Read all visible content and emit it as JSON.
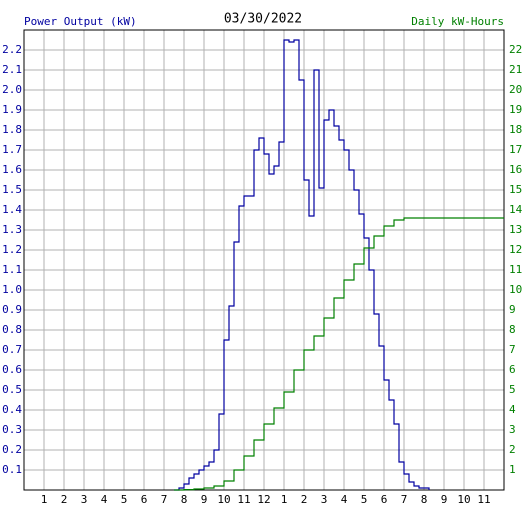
{
  "chart_data": {
    "type": "step-line",
    "title": "03/30/2022",
    "xlim": [
      0,
      24
    ],
    "xticks": [
      1,
      2,
      3,
      4,
      5,
      6,
      7,
      8,
      9,
      10,
      11,
      12,
      {
        "value": 13,
        "label": "1"
      },
      {
        "value": 14,
        "label": "2"
      },
      {
        "value": 15,
        "label": "3"
      },
      {
        "value": 16,
        "label": "4"
      },
      {
        "value": 17,
        "label": "5"
      },
      {
        "value": 18,
        "label": "6"
      },
      {
        "value": 19,
        "label": "7"
      },
      {
        "value": 20,
        "label": "8"
      },
      {
        "value": 21,
        "label": "9"
      },
      {
        "value": 22,
        "label": "10"
      },
      {
        "value": 23,
        "label": "11"
      }
    ],
    "ylim": [
      0,
      2.3
    ],
    "yticks": [
      0.1,
      0.2,
      0.3,
      0.4,
      0.5,
      0.6,
      0.7,
      0.8,
      0.9,
      {
        "value": 1,
        "label": "1.0"
      },
      1.1,
      1.2,
      1.3,
      1.4,
      1.5,
      1.6,
      1.7,
      1.8,
      1.9,
      {
        "value": 2,
        "label": "2.0"
      },
      2.1,
      2.2
    ],
    "y2lim": [
      0,
      23
    ],
    "y2ticks": [
      1,
      2,
      3,
      4,
      5,
      6,
      7,
      8,
      9,
      10,
      11,
      12,
      13,
      14,
      15,
      16,
      17,
      18,
      19,
      20,
      21,
      22
    ],
    "grid": true,
    "series": [
      {
        "name": "Power Output (kW)",
        "color": "#0000a0",
        "axis": "y",
        "x": [
          7.5,
          7.75,
          8,
          8.25,
          8.5,
          8.75,
          9,
          9.25,
          9.5,
          9.75,
          10,
          10.25,
          10.5,
          10.75,
          11,
          11.25,
          11.5,
          11.75,
          12,
          12.25,
          12.5,
          12.75,
          13,
          13.25,
          13.5,
          13.75,
          14,
          14.25,
          14.5,
          14.75,
          15,
          15.25,
          15.5,
          15.75,
          16,
          16.25,
          16.5,
          16.75,
          17,
          17.25,
          17.5,
          17.75,
          18,
          18.25,
          18.5,
          18.75,
          19,
          19.25,
          19.5,
          19.75,
          20,
          20.25
        ],
        "values": [
          0,
          0.01,
          0.03,
          0.06,
          0.08,
          0.1,
          0.12,
          0.14,
          0.2,
          0.38,
          0.75,
          0.92,
          1.24,
          1.42,
          1.47,
          1.47,
          1.7,
          1.76,
          1.68,
          1.58,
          1.62,
          1.74,
          2.25,
          2.24,
          2.25,
          2.05,
          1.55,
          1.37,
          2.1,
          1.51,
          1.85,
          1.9,
          1.82,
          1.75,
          1.7,
          1.6,
          1.5,
          1.38,
          1.26,
          1.1,
          0.88,
          0.72,
          0.55,
          0.45,
          0.33,
          0.14,
          0.08,
          0.04,
          0.02,
          0.01,
          0.01,
          0
        ]
      },
      {
        "name": "Daily kW-Hours",
        "color": "#008000",
        "axis": "y2",
        "x": [
          7.5,
          8,
          8.5,
          9,
          9.5,
          10,
          10.5,
          11,
          11.5,
          12,
          12.5,
          13,
          13.5,
          14,
          14.5,
          15,
          15.5,
          16,
          16.5,
          17,
          17.5,
          18,
          18.5,
          19,
          24
        ],
        "values": [
          0,
          0.02,
          0.05,
          0.1,
          0.2,
          0.45,
          1.0,
          1.7,
          2.5,
          3.3,
          4.1,
          4.9,
          6.0,
          7.0,
          7.7,
          8.6,
          9.6,
          10.5,
          11.3,
          12.1,
          12.7,
          13.2,
          13.5,
          13.6,
          13.6
        ]
      }
    ]
  }
}
